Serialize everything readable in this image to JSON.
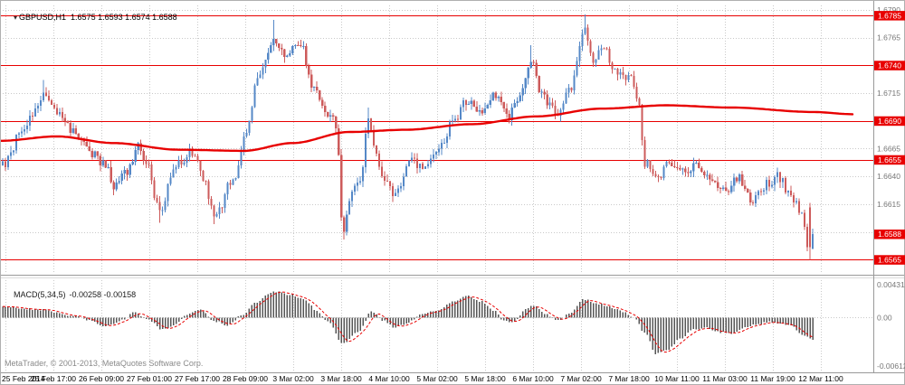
{
  "header": {
    "symbol": "GBPUSD,H1",
    "ohlc": "1.6575 1.6593 1.6574 1.6588"
  },
  "macd_label": {
    "name": "MACD(5,34,5)",
    "values": "-0.00258 -0.00158"
  },
  "footer": {
    "copyright": "MetaTrader, © 2001-2013, MetaQuotes Software Corp."
  },
  "icons": {
    "chart_marker": "▾"
  },
  "colors": {
    "background": "#ffffff",
    "grid": "#c9c9c9",
    "bull": "#5588c7",
    "bear": "#cd5b5b",
    "red_line": "#e80000",
    "histogram": "#565656",
    "axis_text": "#777777",
    "label_text": "#000000",
    "badge_bg": "#e80000",
    "badge_text": "#ffffff",
    "frame": "#b0b0b0",
    "separator": "#999999"
  },
  "chart_data": {
    "type": "candlestick",
    "title": "GBPUSD,H1",
    "symbol": "GBPUSD",
    "timeframe": "H1",
    "price_axis": {
      "min": 1.6553,
      "max": 1.6794,
      "ticks": [
        1.679,
        1.6765,
        1.674,
        1.6715,
        1.669,
        1.6665,
        1.664,
        1.6615,
        1.659,
        1.6565
      ]
    },
    "hlines": [
      1.6785,
      1.674,
      1.669,
      1.6655,
      1.6565
    ],
    "badges": [
      1.6785,
      1.674,
      1.669,
      1.6655,
      1.6565
    ],
    "current_price": 1.6588,
    "last_candle": {
      "o": 1.6575,
      "h": 1.6593,
      "l": 1.6574,
      "c": 1.6588
    },
    "prev_candle": {
      "o": 1.6612,
      "h": 1.6616,
      "l": 1.6565,
      "c": 1.6576
    },
    "x_labels": [
      "25 Feb 2014",
      "25 Feb 17:00",
      "26 Feb 09:00",
      "27 Feb 01:00",
      "27 Feb 17:00",
      "28 Feb 09:00",
      "3 Mar 02:00",
      "3 Mar 18:00",
      "4 Mar 10:00",
      "5 Mar 02:00",
      "5 Mar 18:00",
      "6 Mar 10:00",
      "7 Mar 02:00",
      "7 Mar 18:00",
      "10 Mar 11:00",
      "11 Mar 03:00",
      "11 Mar 19:00",
      "12 Mar 11:00"
    ],
    "n_candles": 300,
    "price_path": [
      [
        0.0,
        1.665
      ],
      [
        0.025,
        1.6682
      ],
      [
        0.05,
        1.6713
      ],
      [
        0.068,
        1.6696
      ],
      [
        0.09,
        1.6678
      ],
      [
        0.111,
        1.666
      ],
      [
        0.128,
        1.6648
      ],
      [
        0.139,
        1.663
      ],
      [
        0.154,
        1.6645
      ],
      [
        0.167,
        1.6668
      ],
      [
        0.178,
        1.665
      ],
      [
        0.195,
        1.6606
      ],
      [
        0.212,
        1.665
      ],
      [
        0.235,
        1.6662
      ],
      [
        0.248,
        1.6635
      ],
      [
        0.262,
        1.6604
      ],
      [
        0.284,
        1.6638
      ],
      [
        0.301,
        1.668
      ],
      [
        0.317,
        1.6735
      ],
      [
        0.334,
        1.6764
      ],
      [
        0.351,
        1.6748
      ],
      [
        0.367,
        1.676
      ],
      [
        0.384,
        1.6718
      ],
      [
        0.401,
        1.6698
      ],
      [
        0.412,
        1.6686
      ],
      [
        0.42,
        1.659
      ],
      [
        0.432,
        1.6625
      ],
      [
        0.443,
        1.664
      ],
      [
        0.451,
        1.6692
      ],
      [
        0.468,
        1.664
      ],
      [
        0.484,
        1.6623
      ],
      [
        0.501,
        1.6653
      ],
      [
        0.523,
        1.6648
      ],
      [
        0.538,
        1.6666
      ],
      [
        0.557,
        1.669
      ],
      [
        0.573,
        1.6708
      ],
      [
        0.59,
        1.6698
      ],
      [
        0.607,
        1.6712
      ],
      [
        0.624,
        1.6694
      ],
      [
        0.64,
        1.6716
      ],
      [
        0.651,
        1.6744
      ],
      [
        0.668,
        1.671
      ],
      [
        0.685,
        1.6698
      ],
      [
        0.702,
        1.6722
      ],
      [
        0.718,
        1.6772
      ],
      [
        0.729,
        1.6746
      ],
      [
        0.74,
        1.6756
      ],
      [
        0.757,
        1.6736
      ],
      [
        0.774,
        1.673
      ],
      [
        0.785,
        1.6704
      ],
      [
        0.793,
        1.6652
      ],
      [
        0.807,
        1.6636
      ],
      [
        0.824,
        1.6652
      ],
      [
        0.841,
        1.6644
      ],
      [
        0.857,
        1.665
      ],
      [
        0.874,
        1.6636
      ],
      [
        0.891,
        1.6626
      ],
      [
        0.908,
        1.664
      ],
      [
        0.924,
        1.6618
      ],
      [
        0.941,
        1.6632
      ],
      [
        0.958,
        1.664
      ],
      [
        0.974,
        1.662
      ],
      [
        0.986,
        1.6608
      ],
      [
        0.996,
        1.657
      ],
      [
        1.0,
        1.6588
      ]
    ],
    "wick_spikes": [
      {
        "f": 0.05,
        "h": 1.6727
      },
      {
        "f": 0.195,
        "l": 1.6598
      },
      {
        "f": 0.262,
        "l": 1.6597
      },
      {
        "f": 0.334,
        "h": 1.6781
      },
      {
        "f": 0.42,
        "l": 1.6583
      },
      {
        "f": 0.451,
        "h": 1.6702
      },
      {
        "f": 0.651,
        "h": 1.6758
      },
      {
        "f": 0.718,
        "h": 1.6786
      }
    ],
    "ma_path": [
      [
        0.0,
        1.6672
      ],
      [
        0.07,
        1.6676
      ],
      [
        0.14,
        1.667
      ],
      [
        0.22,
        1.6664
      ],
      [
        0.3,
        1.6663
      ],
      [
        0.36,
        1.667
      ],
      [
        0.43,
        1.668
      ],
      [
        0.5,
        1.6682
      ],
      [
        0.58,
        1.6687
      ],
      [
        0.66,
        1.6694
      ],
      [
        0.74,
        1.6701
      ],
      [
        0.82,
        1.6704
      ],
      [
        0.9,
        1.6702
      ],
      [
        1.0,
        1.6698
      ],
      [
        1.05,
        1.6696
      ]
    ],
    "macd": {
      "params": "5,34,5",
      "value": -0.00258,
      "signal_value": -0.00158,
      "axis": {
        "max": 0.00431,
        "min": -0.00612,
        "labels": [
          "0.00431",
          "0.00",
          "-0.00612"
        ]
      },
      "path": [
        [
          0.0,
          0.0013
        ],
        [
          0.045,
          0.0009
        ],
        [
          0.09,
          0.0002
        ],
        [
          0.105,
          -0.0003
        ],
        [
          0.128,
          -0.001
        ],
        [
          0.15,
          -0.0002
        ],
        [
          0.162,
          0.0006
        ],
        [
          0.18,
          -0.0002
        ],
        [
          0.195,
          -0.0013
        ],
        [
          0.21,
          -0.001
        ],
        [
          0.228,
          0.0004
        ],
        [
          0.245,
          0.0009
        ],
        [
          0.262,
          -0.0004
        ],
        [
          0.278,
          -0.0009
        ],
        [
          0.295,
          0.0002
        ],
        [
          0.312,
          0.0016
        ],
        [
          0.334,
          0.003
        ],
        [
          0.356,
          0.0026
        ],
        [
          0.372,
          0.0021
        ],
        [
          0.39,
          0.0006
        ],
        [
          0.401,
          -0.0005
        ],
        [
          0.42,
          -0.003
        ],
        [
          0.44,
          -0.0016
        ],
        [
          0.455,
          0.0007
        ],
        [
          0.47,
          -0.0004
        ],
        [
          0.484,
          -0.0011
        ],
        [
          0.501,
          -0.0006
        ],
        [
          0.517,
          0.0004
        ],
        [
          0.535,
          0.0008
        ],
        [
          0.557,
          0.0018
        ],
        [
          0.573,
          0.0025
        ],
        [
          0.59,
          0.0019
        ],
        [
          0.607,
          0.0008
        ],
        [
          0.618,
          -0.0004
        ],
        [
          0.63,
          -0.0006
        ],
        [
          0.645,
          0.0009
        ],
        [
          0.656,
          0.0014
        ],
        [
          0.67,
          0.0004
        ],
        [
          0.685,
          -0.0004
        ],
        [
          0.7,
          0.0005
        ],
        [
          0.718,
          0.0021
        ],
        [
          0.734,
          0.0016
        ],
        [
          0.75,
          0.0012
        ],
        [
          0.768,
          0.0006
        ],
        [
          0.78,
          0.0
        ],
        [
          0.793,
          -0.0018
        ],
        [
          0.807,
          -0.0042
        ],
        [
          0.82,
          -0.0038
        ],
        [
          0.836,
          -0.0025
        ],
        [
          0.852,
          -0.0014
        ],
        [
          0.868,
          -0.0012
        ],
        [
          0.885,
          -0.0017
        ],
        [
          0.9,
          -0.0018
        ],
        [
          0.915,
          -0.0012
        ],
        [
          0.93,
          -0.0008
        ],
        [
          0.946,
          -0.0005
        ],
        [
          0.96,
          -0.0006
        ],
        [
          0.974,
          -0.001
        ],
        [
          0.988,
          -0.002
        ],
        [
          1.0,
          -0.00258
        ]
      ]
    }
  }
}
